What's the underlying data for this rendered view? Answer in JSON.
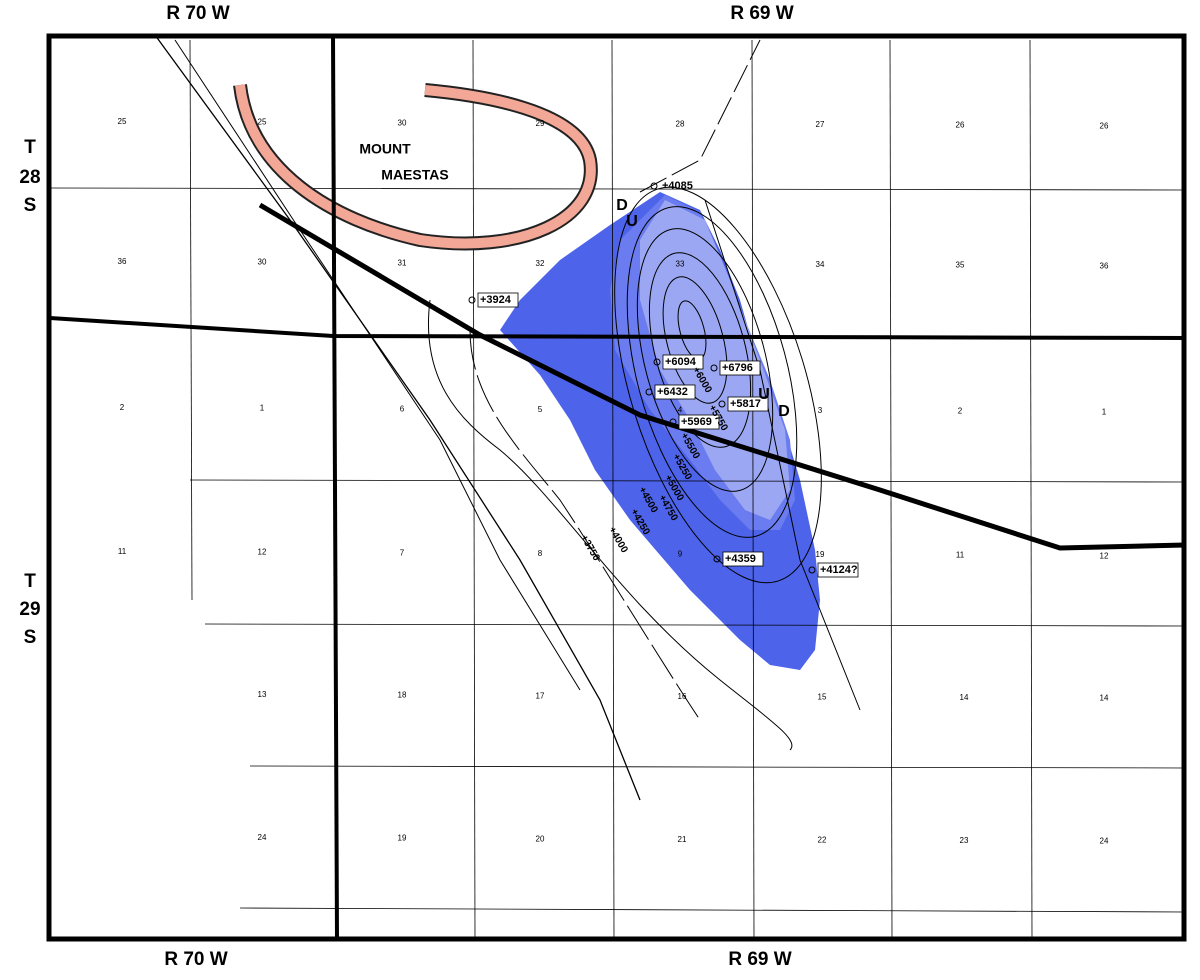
{
  "map": {
    "ranges": {
      "top_left": "R 70 W",
      "top_right": "R 69 W",
      "bottom_left": "R 70 W",
      "bottom_right": "R 69 W"
    },
    "townships": {
      "north": [
        "T",
        "28",
        "S"
      ],
      "south": [
        "T",
        "29",
        "S"
      ]
    },
    "place": [
      "MOUNT",
      "MAESTAS"
    ],
    "sections": [
      [
        "25",
        "25",
        "30",
        "29",
        "28",
        "27",
        "26",
        "26"
      ],
      [
        "36",
        "30",
        "31",
        "32",
        "33",
        "34",
        "35",
        "36"
      ],
      [
        "2",
        "1",
        "6",
        "5",
        "4",
        "3",
        "2",
        "1"
      ],
      [
        "11",
        "12",
        "7",
        "8",
        "9",
        "19",
        "11",
        "12"
      ],
      [
        "13",
        "18",
        "17",
        "16",
        "15",
        "14",
        "14"
      ],
      [
        "24",
        "19",
        "20",
        "21",
        "22",
        "23",
        "24"
      ]
    ],
    "wells": [
      "+4085",
      "+3924",
      "+6094",
      "+6796",
      "+6432",
      "+5817",
      "+5969",
      "+4359",
      "+4124?"
    ],
    "contours": [
      "+6000",
      "+5750",
      "+5500",
      "+5250",
      "+5000",
      "+4750",
      "+4500",
      "+4250",
      "+4000",
      "+3750"
    ],
    "fault_marks": [
      "D",
      "U",
      "U",
      "D"
    ]
  }
}
